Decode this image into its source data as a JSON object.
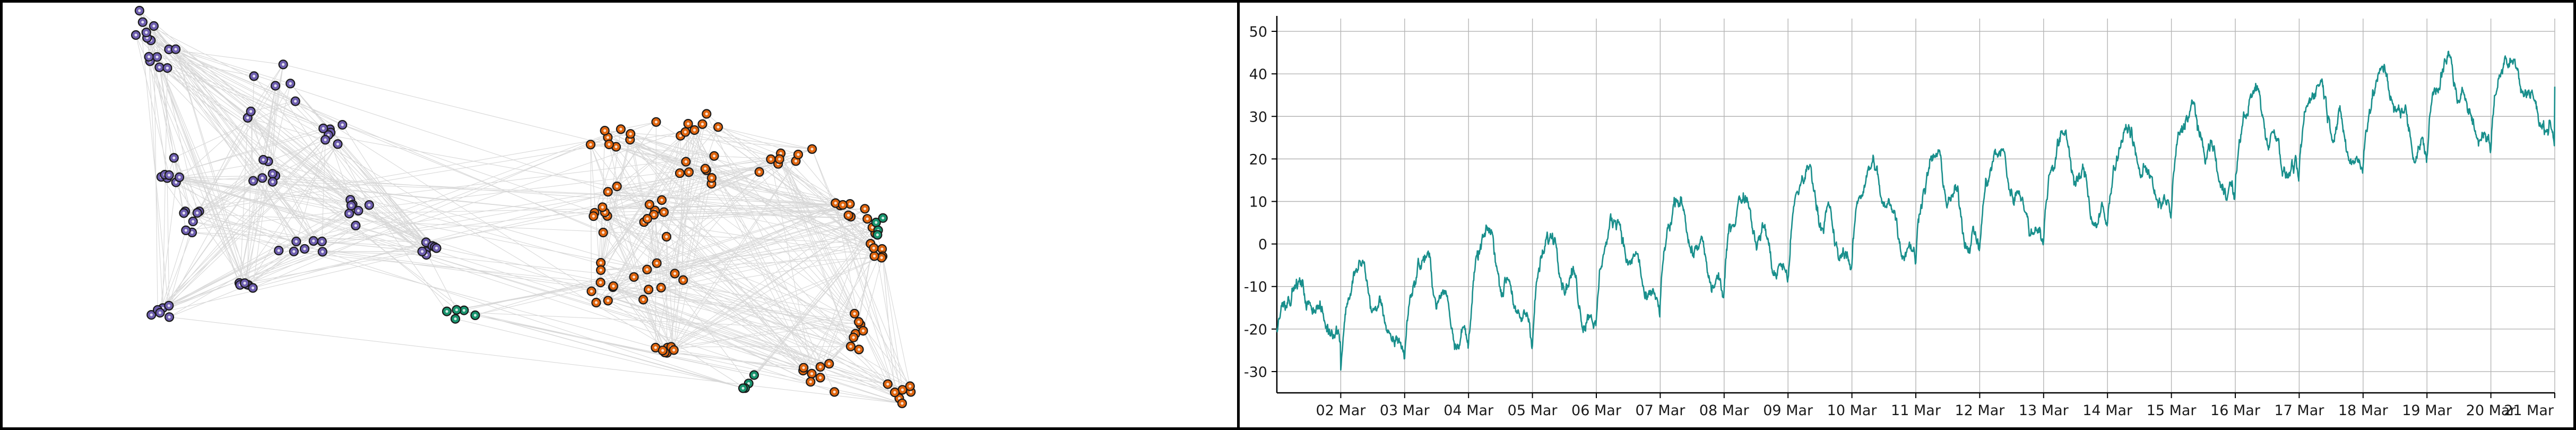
{
  "colors": {
    "group_purple": "#6f5fb0",
    "group_orange": "#e0650e",
    "group_green": "#18946e",
    "node_outline": "#1a1a1a",
    "edge": "#c8c8c8",
    "line": "#198f8c",
    "grid": "#b4b4b4",
    "axis": "#000000"
  },
  "chart_data": [
    {
      "type": "network",
      "title": "",
      "groups": [
        {
          "color": "purple",
          "nodes": 82
        },
        {
          "color": "orange",
          "nodes": 110
        },
        {
          "color": "green",
          "nodes": 13
        }
      ],
      "edges": "light gray, dense within groups, sparse between groups",
      "axes": "none"
    },
    {
      "type": "line",
      "title": "",
      "xlabel": "",
      "ylabel": "",
      "x_start": "01 Mar",
      "x_end": "21 Mar",
      "x_tick_labels": [
        "02 Mar",
        "03 Mar",
        "04 Mar",
        "05 Mar",
        "06 Mar",
        "07 Mar",
        "08 Mar",
        "09 Mar",
        "10 Mar",
        "11 Mar",
        "12 Mar",
        "13 Mar",
        "14 Mar",
        "15 Mar",
        "16 Mar",
        "17 Mar",
        "18 Mar",
        "19 Mar",
        "20 Mar",
        "21 Mar"
      ],
      "y_ticks": [
        50,
        40,
        30,
        20,
        10,
        0,
        -10,
        -20,
        -30
      ],
      "ylim": [
        -35,
        53
      ],
      "grid": true,
      "legend": "none",
      "series": [
        {
          "x": [
            "01 Mar",
            "02 Mar",
            "03 Mar",
            "04 Mar",
            "05 Mar",
            "06 Mar",
            "07 Mar",
            "08 Mar",
            "09 Mar",
            "10 Mar",
            "11 Mar",
            "12 Mar",
            "13 Mar",
            "14 Mar",
            "15 Mar",
            "16 Mar",
            "17 Mar",
            "18 Mar",
            "19 Mar",
            "20 Mar",
            "21 Mar"
          ],
          "daily_peak": [
            -9,
            -4,
            -2,
            4,
            3,
            8,
            11,
            13,
            19,
            20,
            22,
            23,
            27,
            28,
            33,
            37,
            40,
            42,
            44,
            47,
            42
          ],
          "daily_trough": [
            -20,
            -28,
            -26,
            -23,
            -21,
            -19,
            -15,
            -11,
            -8,
            -5,
            -3,
            -1,
            1,
            4,
            8,
            12,
            15,
            18,
            21,
            24,
            24
          ]
        }
      ]
    }
  ]
}
